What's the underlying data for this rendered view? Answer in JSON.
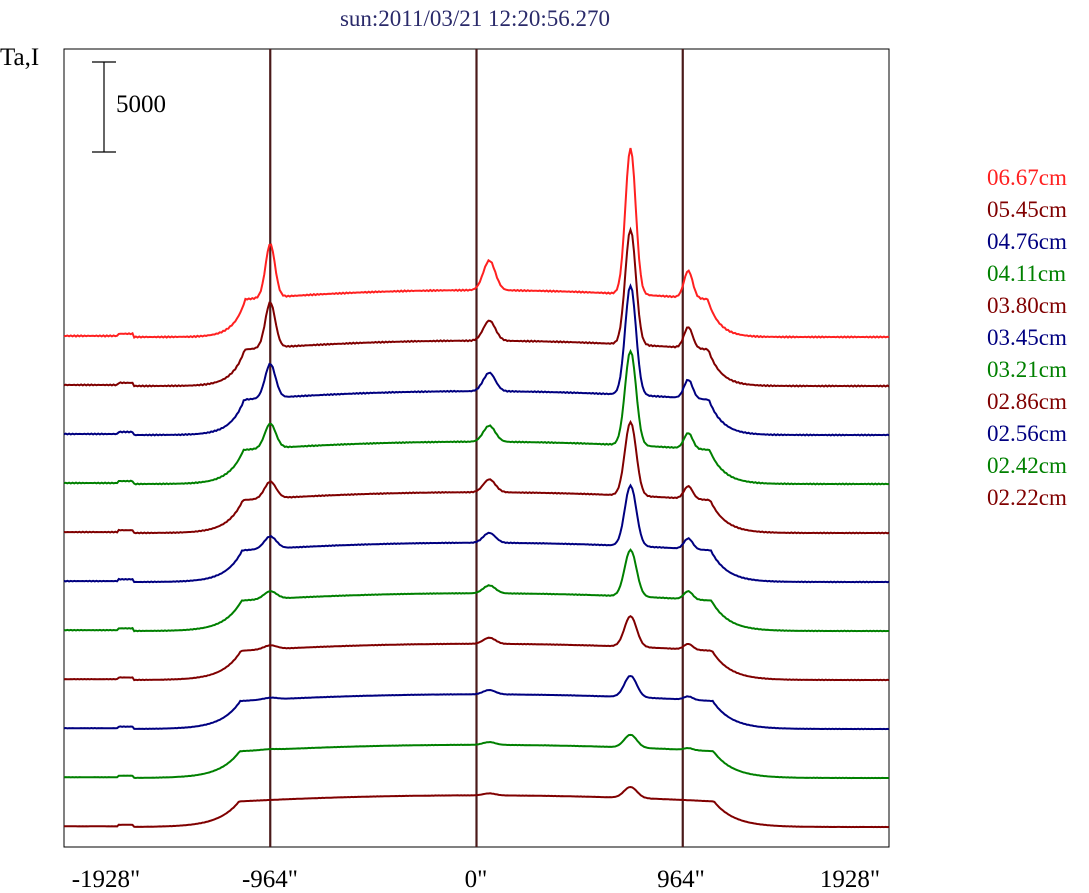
{
  "chart_data": {
    "type": "line",
    "title": "sun:2011/03/21 12:20:56.270",
    "ylabel": "Ta,I",
    "scale_bar_label": "5000",
    "xlabel": "",
    "x_ticks": [
      {
        "value": -1928,
        "label": "-1928\""
      },
      {
        "value": -964,
        "label": "-964\""
      },
      {
        "value": 0,
        "label": "0\""
      },
      {
        "value": 964,
        "label": "964\""
      },
      {
        "value": 1928,
        "label": "1928\""
      }
    ],
    "xlim": [
      -1928,
      1928
    ],
    "vlines": [
      -964,
      0,
      964
    ],
    "grid": false,
    "legend_position": "right",
    "series": [
      {
        "name": "06.67cm",
        "color": "#ff2020",
        "baseline": 0,
        "limb": 2200,
        "limbHW": 72,
        "west": 4400,
        "westHW": 45,
        "center": 1500,
        "westPeak": 8100,
        "eastLimb": 1500
      },
      {
        "name": "05.45cm",
        "color": "#800000",
        "baseline": 0,
        "limb": 2100,
        "limbHW": 70,
        "west": 4100,
        "westHW": 45,
        "center": 1050,
        "westPeak": 6600,
        "eastLimb": 1200
      },
      {
        "name": "04.76cm",
        "color": "#000080",
        "baseline": 0,
        "limb": 1800,
        "limbHW": 68,
        "west": 4000,
        "westHW": 45,
        "center": 1000,
        "westPeak": 6500,
        "eastLimb": 1100
      },
      {
        "name": "04.11cm",
        "color": "#008000",
        "baseline": 0,
        "limb": 1500,
        "limbHW": 66,
        "west": 3800,
        "westHW": 45,
        "center": 900,
        "westPeak": 5800,
        "eastLimb": 950
      },
      {
        "name": "03.80cm",
        "color": "#800000",
        "baseline": 0,
        "limb": 1200,
        "limbHW": 64,
        "west": 3700,
        "westHW": 45,
        "center": 750,
        "westPeak": 4700,
        "eastLimb": 800
      },
      {
        "name": "03.45cm",
        "color": "#000080",
        "baseline": 0,
        "limb": 1050,
        "limbHW": 62,
        "west": 3600,
        "westHW": 45,
        "center": 600,
        "westPeak": 4000,
        "eastLimb": 700
      },
      {
        "name": "03.21cm",
        "color": "#008000",
        "baseline": 0,
        "limb": 800,
        "limbHW": 60,
        "west": 3500,
        "westHW": 45,
        "center": 500,
        "westPeak": 3200,
        "eastLimb": 550
      },
      {
        "name": "02.86cm",
        "color": "#800000",
        "baseline": 0,
        "limb": 500,
        "limbHW": 58,
        "west": 3350,
        "westHW": 45,
        "center": 400,
        "westPeak": 2200,
        "eastLimb": 400
      },
      {
        "name": "02.56cm",
        "color": "#000080",
        "baseline": 0,
        "limb": 300,
        "limbHW": 56,
        "west": 3300,
        "westHW": 45,
        "center": 300,
        "westPeak": 1600,
        "eastLimb": 250
      },
      {
        "name": "02.42cm",
        "color": "#008000",
        "baseline": 0,
        "limb": 150,
        "limbHW": 55,
        "west": 3250,
        "westHW": 45,
        "center": 200,
        "westPeak": 1000,
        "eastLimb": 150
      },
      {
        "name": "02.22cm",
        "color": "#800000",
        "baseline": 0,
        "limb": 0,
        "limbHW": 55,
        "west": 3200,
        "westHW": 45,
        "center": 150,
        "westPeak": 900,
        "eastLimb": 0
      }
    ]
  }
}
